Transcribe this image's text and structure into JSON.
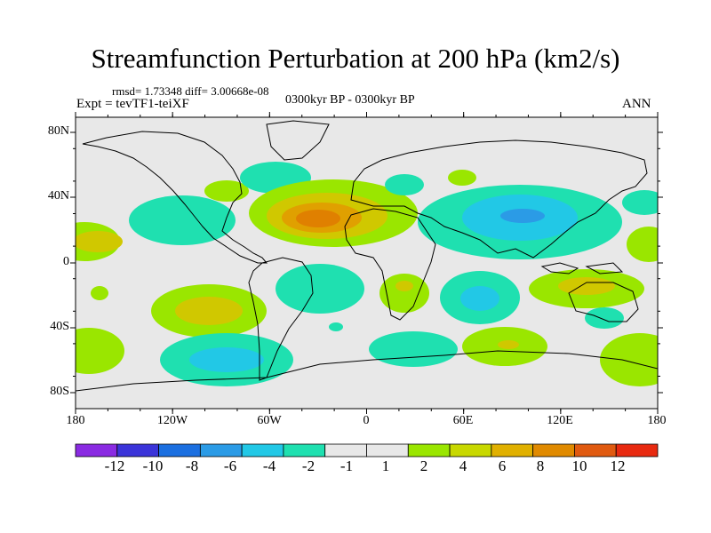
{
  "title": "Streamfunction Perturbation at 200 hPa (km2/s)",
  "stats": "rmsd= 1.73348 diff= 3.00668e-08",
  "experiment": "Expt = tevTF1-teiXF",
  "period": "0300kyr BP - 0300kyr BP",
  "season": "ANN",
  "lat_labels": [
    "80N",
    "40N",
    "0",
    "40S",
    "80S"
  ],
  "lon_labels": [
    "180",
    "120W",
    "60W",
    "0",
    "60E",
    "120E",
    "180"
  ],
  "colorbar": {
    "labels": [
      "-12",
      "-10",
      "-8",
      "-6",
      "-4",
      "-2",
      "-1",
      "1",
      "2",
      "4",
      "6",
      "8",
      "10",
      "12"
    ],
    "colors": [
      "#8a2be2",
      "#3b34d9",
      "#1b6fe0",
      "#2b9be6",
      "#22c8e6",
      "#1fe0b0",
      "#e8e8e8",
      "#e8e8e8",
      "#9ae600",
      "#c8d800",
      "#e0b000",
      "#e08a00",
      "#e05a10",
      "#e82a10"
    ]
  },
  "map_colors": {
    "background": "#e8e8e8",
    "neg1": "#1fe0b0",
    "neg2": "#22c8e6",
    "neg3": "#2b9be6",
    "pos1": "#9ae600",
    "pos2": "#d0c800",
    "pos3": "#e0a000",
    "pos4": "#e08000"
  }
}
